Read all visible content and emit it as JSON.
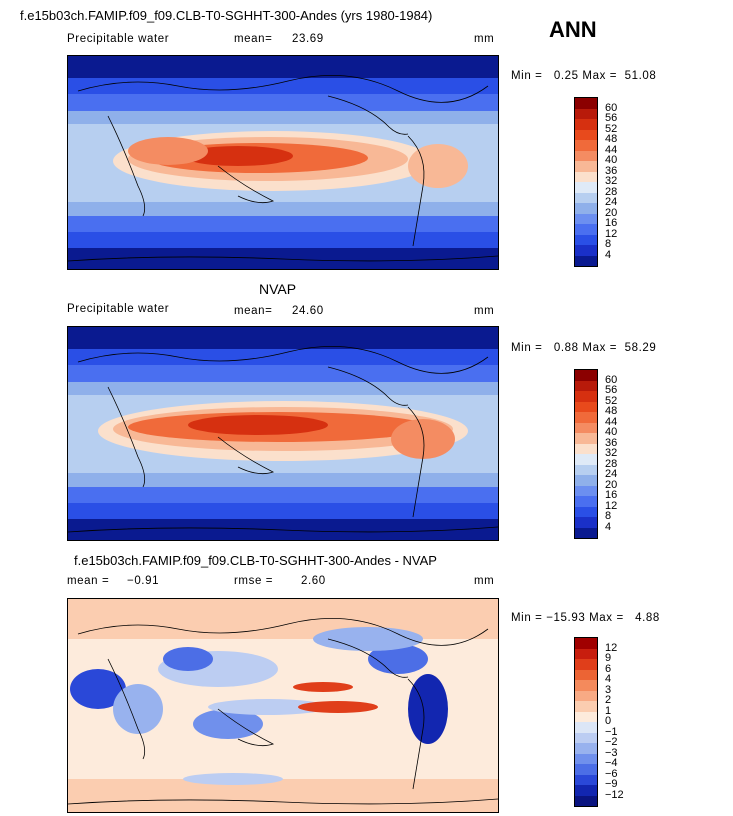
{
  "season": "ANN",
  "panels": [
    {
      "id": "model",
      "title": "f.e15b03ch.FAMIP.f09_f09.CLB-T0-SGHHT-300-Andes (yrs 1980-1984)",
      "variable": "Precipitable water",
      "stat1_label": "mean=",
      "stat1_value": "23.69",
      "stat2_label": "",
      "stat2_value": "",
      "units": "mm",
      "minmax": "Min =   0.25 Max =  51.08",
      "levels": [
        "60",
        "56",
        "52",
        "48",
        "44",
        "40",
        "36",
        "32",
        "28",
        "24",
        "20",
        "16",
        "12",
        "8",
        "4"
      ],
      "colors": [
        "#8b0000",
        "#b81a0a",
        "#d63010",
        "#e84a1c",
        "#f06a3a",
        "#f48c62",
        "#f8b896",
        "#fbe0cc",
        "#dfeaf7",
        "#b7cff0",
        "#8fb0ea",
        "#6c8ff0",
        "#4a6ff0",
        "#2a4fe6",
        "#1a30c8",
        "#0a1a90"
      ]
    },
    {
      "id": "obs",
      "title": "NVAP",
      "variable": "Precipitable water",
      "stat1_label": "mean=",
      "stat1_value": "24.60",
      "stat2_label": "",
      "stat2_value": "",
      "units": "mm",
      "minmax": "Min =   0.88 Max =  58.29",
      "levels": [
        "60",
        "56",
        "52",
        "48",
        "44",
        "40",
        "36",
        "32",
        "28",
        "24",
        "20",
        "16",
        "12",
        "8",
        "4"
      ],
      "colors": [
        "#8b0000",
        "#b81a0a",
        "#d63010",
        "#e84a1c",
        "#f06a3a",
        "#f48c62",
        "#f8b896",
        "#fbe0cc",
        "#dfeaf7",
        "#b7cff0",
        "#8fb0ea",
        "#6c8ff0",
        "#4a6ff0",
        "#2a4fe6",
        "#1a30c8",
        "#0a1a90"
      ]
    },
    {
      "id": "diff",
      "title": "f.e15b03ch.FAMIP.f09_f09.CLB-T0-SGHHT-300-Andes - NVAP",
      "variable": "",
      "stat1_label": "mean =",
      "stat1_value": "−0.91",
      "stat2_label": "rmse =",
      "stat2_value": "2.60",
      "units": "mm",
      "minmax": "Min = −15.93 Max =   4.88",
      "levels": [
        "12",
        "9",
        "6",
        "4",
        "3",
        "2",
        "1",
        "0",
        "−1",
        "−2",
        "−3",
        "−4",
        "−6",
        "−9",
        "−12"
      ],
      "colors": [
        "#a00000",
        "#c81e0e",
        "#e03e1a",
        "#ec6434",
        "#f48a5c",
        "#f8aa84",
        "#fbcdb0",
        "#fdebdc",
        "#dce6f6",
        "#bccdf2",
        "#98b2ee",
        "#7090ec",
        "#4c6ee6",
        "#2a48d8",
        "#1226b0",
        "#0a1480"
      ]
    }
  ]
}
